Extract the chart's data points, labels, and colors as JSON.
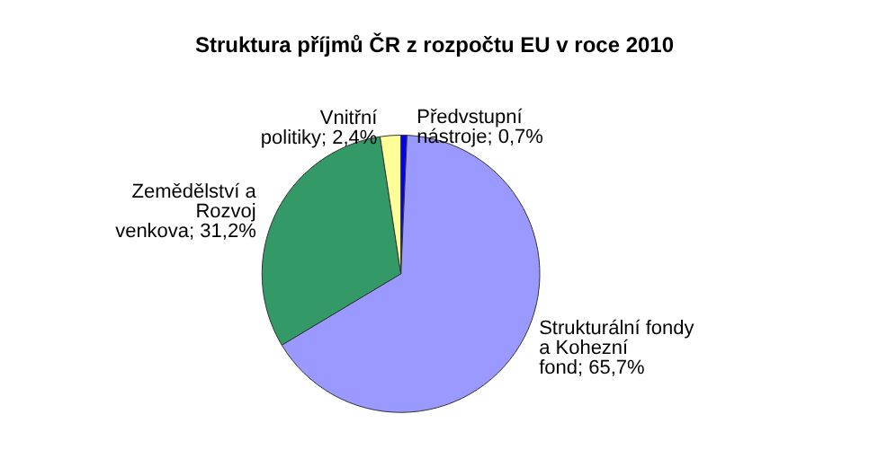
{
  "chart_data": {
    "type": "pie",
    "title": "Struktura příjmů ČR z rozpočtu EU v roce 2010",
    "categories": [
      "Předvstupní nástroje",
      "Strukturální fondy a Kohezní fond",
      "Zemědělství a Rozvoj venkova",
      "Vnitřní politiky"
    ],
    "values": [
      0.7,
      65.7,
      31.2,
      2.4
    ],
    "value_labels": [
      "0,7%",
      "65,7%",
      "31,2%",
      "2,4%"
    ],
    "colors": [
      "#0000ff",
      "#9999ff",
      "#339966",
      "#ffff99"
    ],
    "legend": false
  }
}
